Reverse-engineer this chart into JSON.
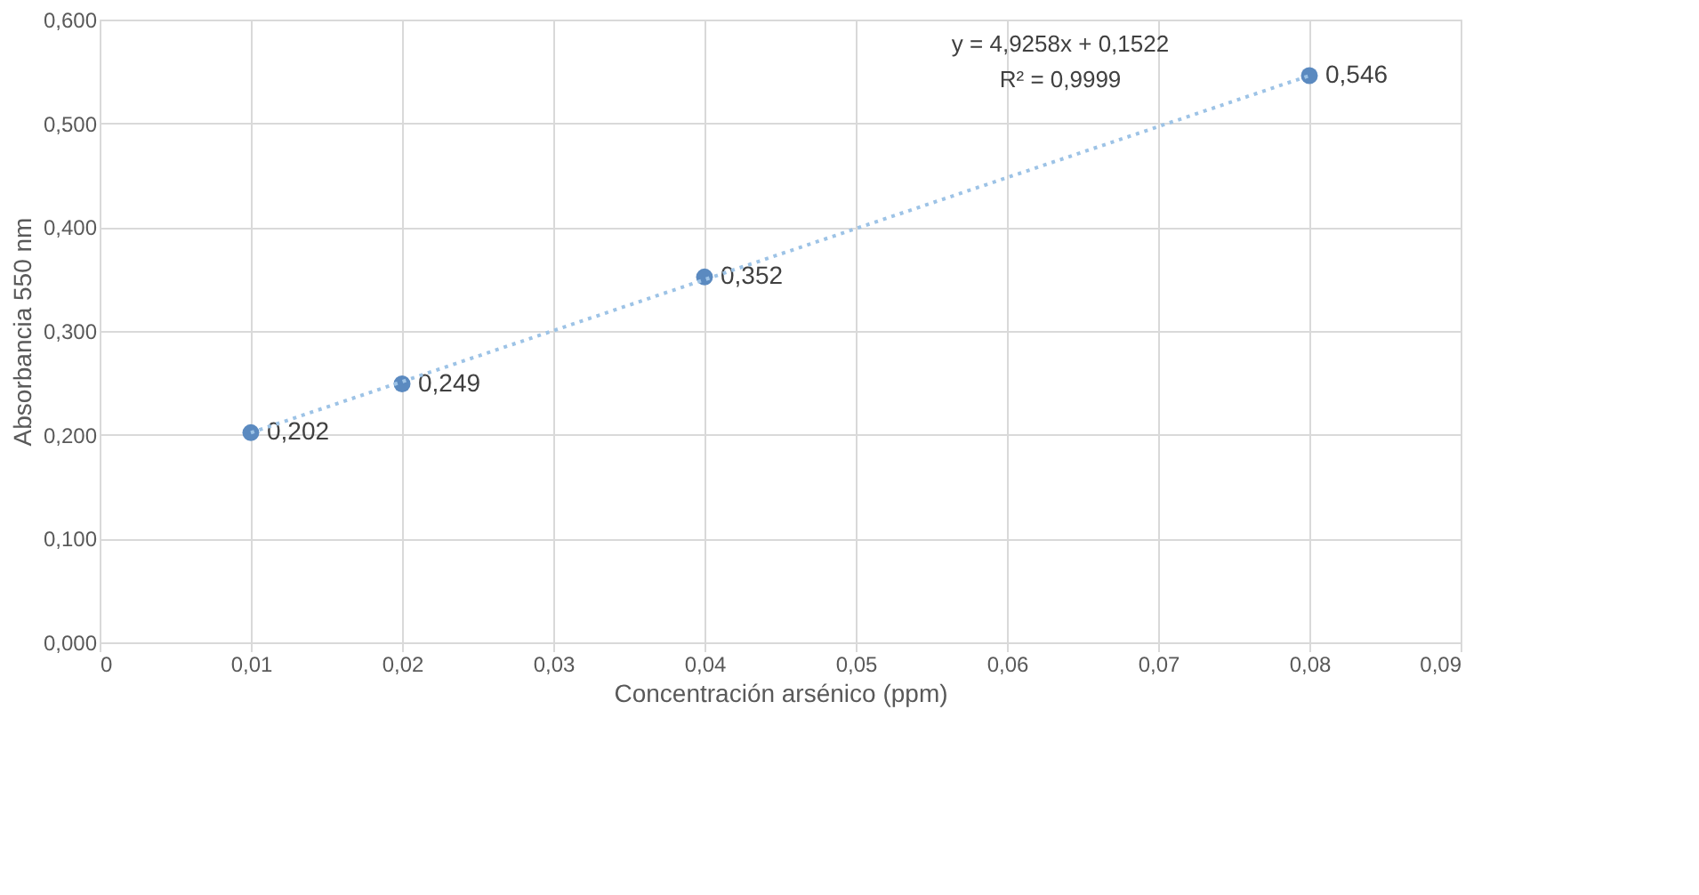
{
  "chart_data": {
    "type": "scatter",
    "xlabel": "Concentración arsénico (ppm)",
    "ylabel": "Absorbancia 550 nm",
    "x": [
      0.01,
      0.02,
      0.04,
      0.08
    ],
    "series": [
      {
        "color": "#5b8ac0",
        "values": [
          0.202,
          0.249,
          0.352,
          0.546
        ],
        "value_labels": [
          "0,202",
          "0,249",
          "0,352",
          "0,546"
        ],
        "marker": "circle"
      },
      {
        "type": "line",
        "color": "#9dc3e6",
        "x": [
          0.01,
          0.08
        ],
        "values": [
          0.202,
          0.546
        ],
        "line_style": "dotted"
      }
    ],
    "xlim": [
      0,
      0.09
    ],
    "xticks": [
      {
        "value": 0,
        "label": "0"
      },
      {
        "value": 0.01,
        "label": "0,01"
      },
      {
        "value": 0.02,
        "label": "0,02"
      },
      {
        "value": 0.03,
        "label": "0,03"
      },
      {
        "value": 0.04,
        "label": "0,04"
      },
      {
        "value": 0.05,
        "label": "0,05"
      },
      {
        "value": 0.06,
        "label": "0,06"
      },
      {
        "value": 0.07,
        "label": "0,07"
      },
      {
        "value": 0.08,
        "label": "0,08"
      },
      {
        "value": 0.09,
        "label": "0,09"
      }
    ],
    "ylim": [
      0,
      0.6
    ],
    "yticks": [
      {
        "value": 0,
        "label": "0,000"
      },
      {
        "value": 0.1,
        "label": "0,100"
      },
      {
        "value": 0.2,
        "label": "0,200"
      },
      {
        "value": 0.3,
        "label": "0,300"
      },
      {
        "value": 0.4,
        "label": "0,400"
      },
      {
        "value": 0.5,
        "label": "0,500"
      },
      {
        "value": 0.6,
        "label": "0,600"
      }
    ],
    "annotations": [
      "y = 4,9258x + 0,1522",
      "R² = 0,9999"
    ],
    "grid": true
  }
}
